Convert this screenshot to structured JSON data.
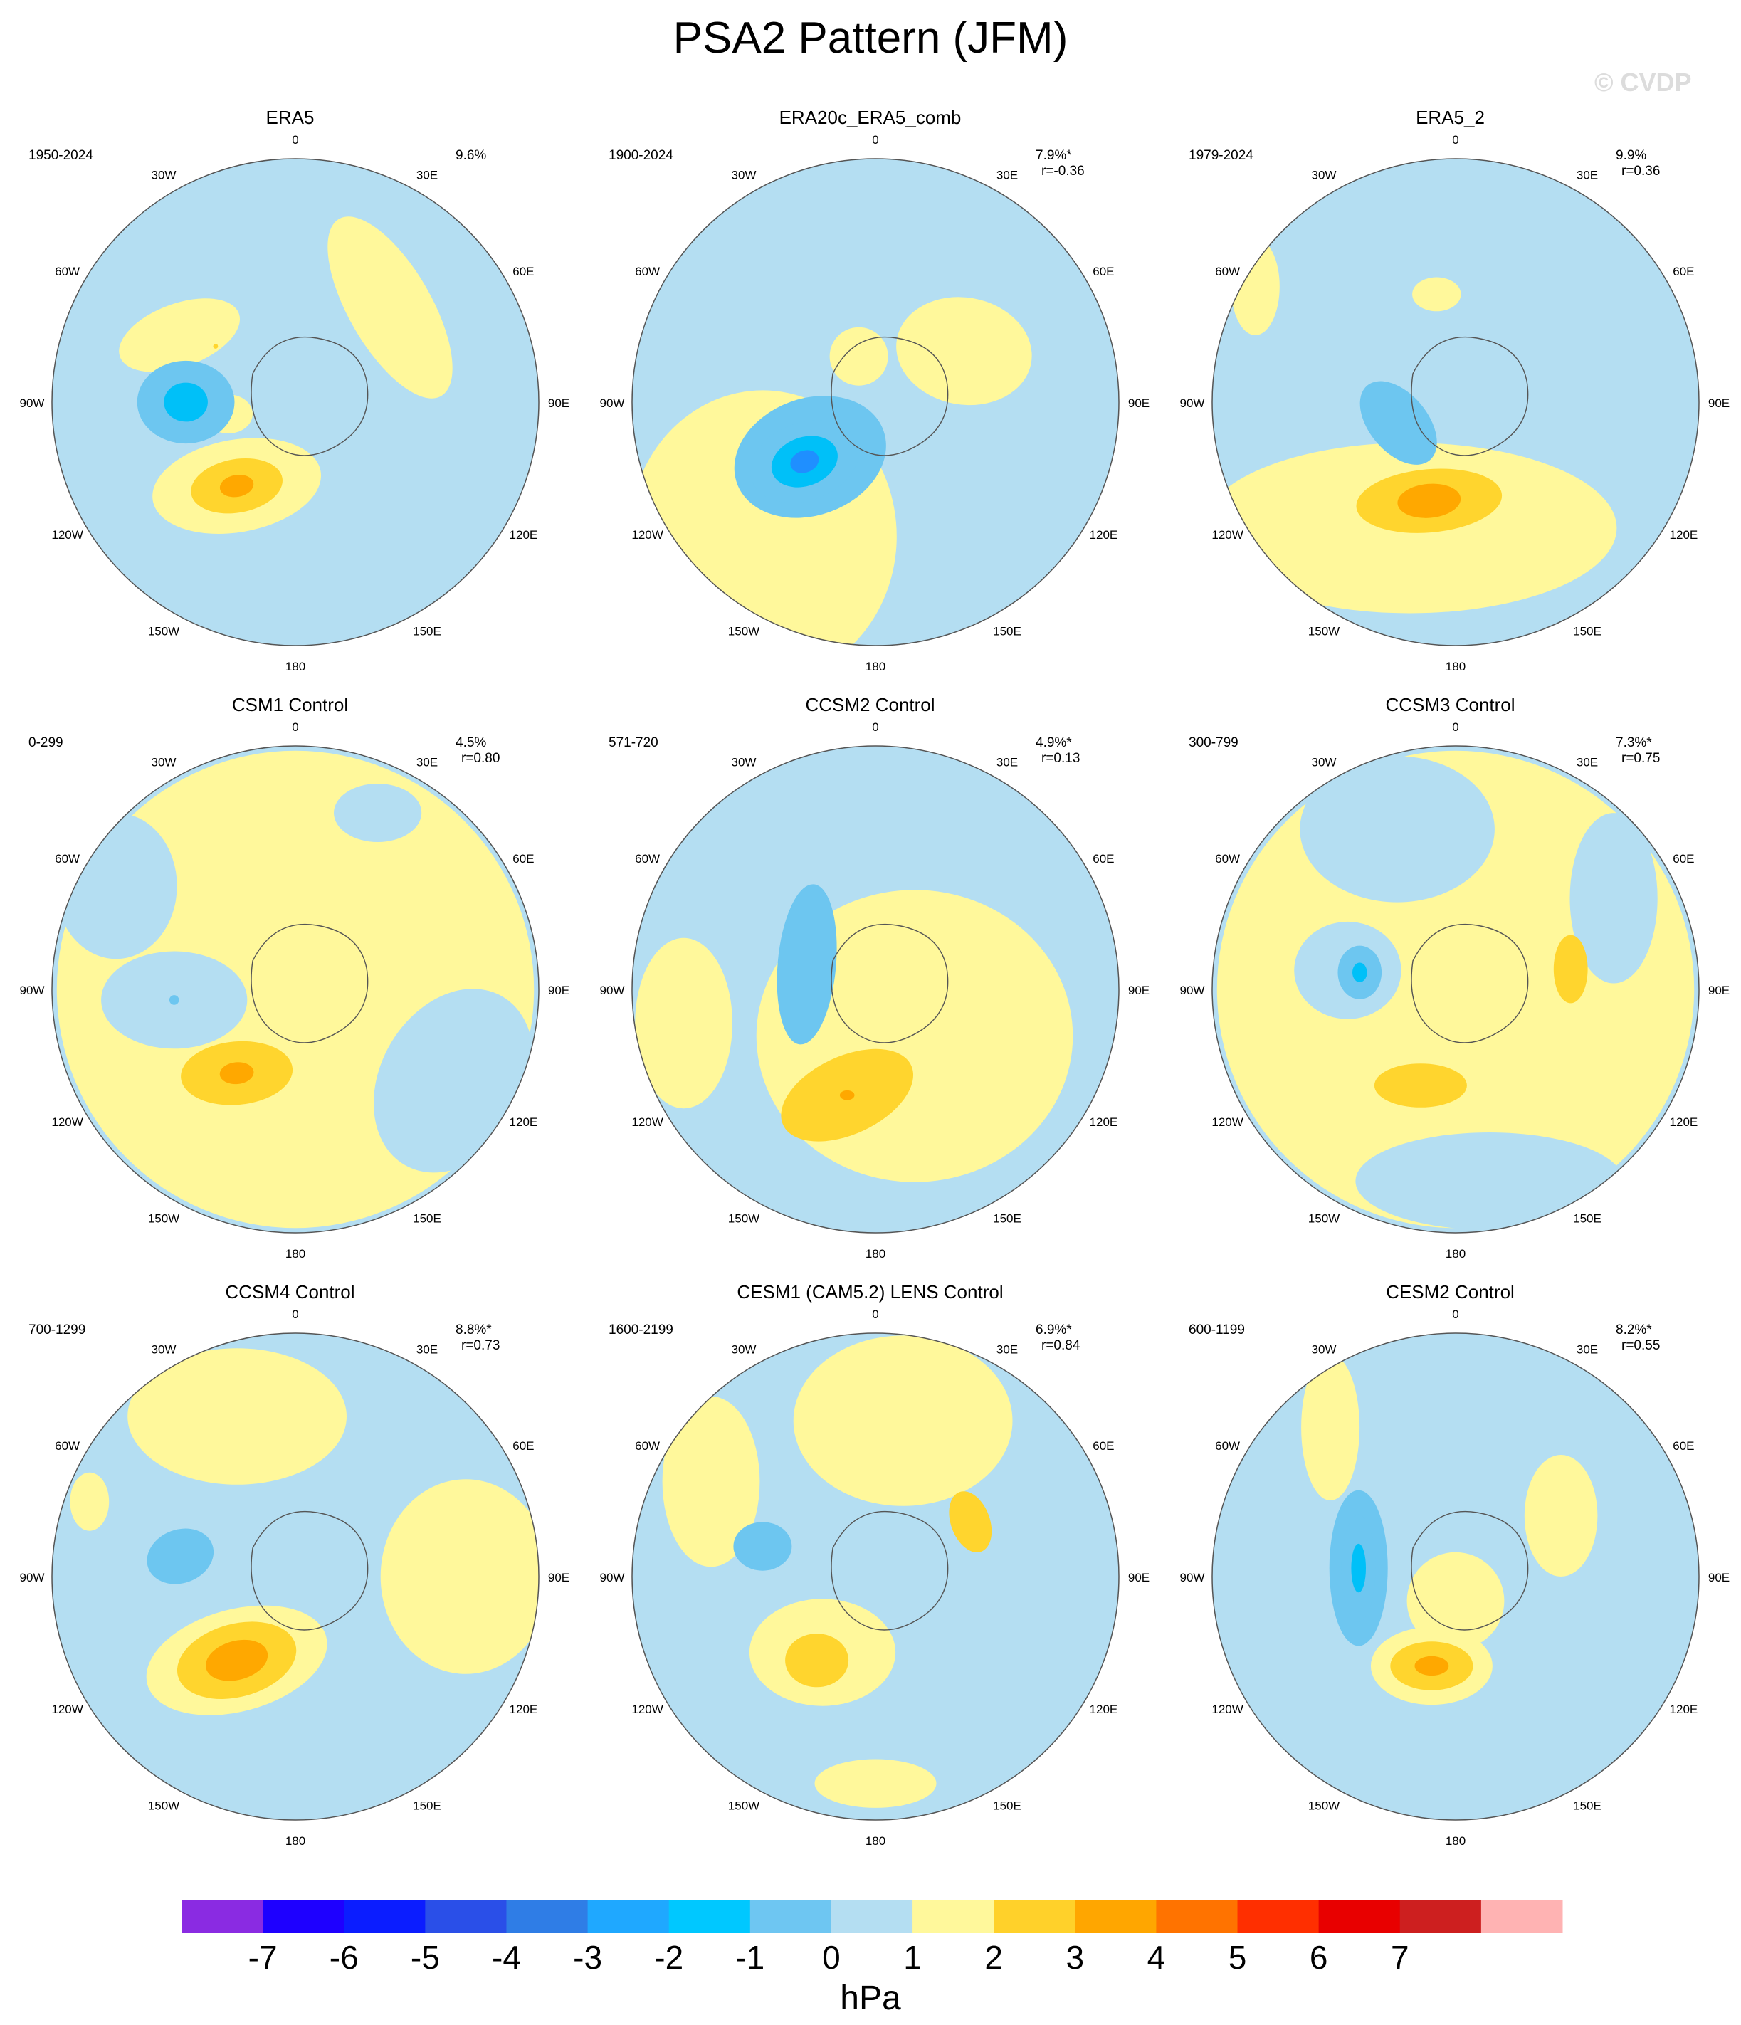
{
  "title": "PSA2 Pattern (JFM)",
  "watermark": "© CVDP",
  "lon_labels": [
    "0",
    "30E",
    "60E",
    "90E",
    "120E",
    "150E",
    "180",
    "150W",
    "120W",
    "90W",
    "60W",
    "30W"
  ],
  "panels": [
    {
      "title": "ERA5",
      "period": "1950-2024",
      "variance": "9.6%",
      "correlation": "",
      "anomalies": [
        {
          "level": 1,
          "lon": 300,
          "colat": 0.55,
          "rx": 0.26,
          "ry": 0.13,
          "rot": -20
        },
        {
          "level": 2,
          "lon": 305,
          "colat": 0.4,
          "rx": 0.01,
          "ry": 0.01,
          "rot": 0
        },
        {
          "level": 1,
          "lon": 45,
          "colat": 0.55,
          "rx": 0.42,
          "ry": 0.17,
          "rot": 60
        },
        {
          "level": 1,
          "lon": 260,
          "colat": 0.28,
          "rx": 0.1,
          "ry": 0.08,
          "rot": 0
        },
        {
          "level": -2,
          "lon": 270,
          "colat": 0.45,
          "rx": 0.2,
          "ry": 0.17,
          "rot": 0
        },
        {
          "level": -3,
          "lon": 270,
          "colat": 0.45,
          "rx": 0.09,
          "ry": 0.08,
          "rot": 0
        },
        {
          "level": 1,
          "lon": 215,
          "colat": 0.42,
          "rx": 0.35,
          "ry": 0.19,
          "rot": -10
        },
        {
          "level": 2,
          "lon": 215,
          "colat": 0.42,
          "rx": 0.19,
          "ry": 0.11,
          "rot": -10
        },
        {
          "level": 3,
          "lon": 215,
          "colat": 0.42,
          "rx": 0.07,
          "ry": 0.045,
          "rot": -10
        }
      ]
    },
    {
      "title": "ERA20c_ERA5_comb",
      "period": "1900-2024",
      "variance": "7.9%*",
      "correlation": "r=-0.36",
      "anomalies": [
        {
          "level": 1,
          "lon": 220,
          "colat": 0.72,
          "rx": 0.55,
          "ry": 0.6,
          "rot": 0
        },
        {
          "level": 1,
          "lon": 60,
          "colat": 0.42,
          "rx": 0.28,
          "ry": 0.22,
          "rot": 10
        },
        {
          "level": 1,
          "lon": 340,
          "colat": 0.2,
          "rx": 0.12,
          "ry": 0.12,
          "rot": 0
        },
        {
          "level": 0,
          "lon": 180,
          "colat": 0.15,
          "rx": 0.1,
          "ry": 0.1,
          "rot": 0
        },
        {
          "level": -1,
          "lon": 230,
          "colat": 0.35,
          "rx": 0.32,
          "ry": 0.24,
          "rot": -20
        },
        {
          "level": -2,
          "lon": 230,
          "colat": 0.38,
          "rx": 0.23,
          "ry": 0.16,
          "rot": -20
        },
        {
          "level": -3,
          "lon": 230,
          "colat": 0.38,
          "rx": 0.14,
          "ry": 0.1,
          "rot": -20
        },
        {
          "level": -4,
          "lon": 230,
          "colat": 0.38,
          "rx": 0.06,
          "ry": 0.045,
          "rot": -20
        }
      ]
    },
    {
      "title": "ERA5_2",
      "period": "1979-2024",
      "variance": "9.9%",
      "correlation": "r=0.36",
      "anomalies": [
        {
          "level": 1,
          "lon": 200,
          "colat": 0.55,
          "rx": 0.85,
          "ry": 0.35,
          "rot": 0
        },
        {
          "level": 1,
          "lon": 300,
          "colat": 0.95,
          "rx": 0.1,
          "ry": 0.2,
          "rot": 0
        },
        {
          "level": 1,
          "lon": 350,
          "colat": 0.45,
          "rx": 0.1,
          "ry": 0.07,
          "rot": 0
        },
        {
          "level": -1,
          "lon": 250,
          "colat": 0.25,
          "rx": 0.12,
          "ry": 0.2,
          "rot": -40
        },
        {
          "level": 2,
          "lon": 195,
          "colat": 0.42,
          "rx": 0.3,
          "ry": 0.13,
          "rot": -5
        },
        {
          "level": 3,
          "lon": 195,
          "colat": 0.42,
          "rx": 0.13,
          "ry": 0.07,
          "rot": -5
        }
      ]
    },
    {
      "title": "CSM1 Control",
      "period": "0-299",
      "variance": "4.5%",
      "correlation": "r=0.80",
      "anomalies": [
        {
          "level": 1,
          "lon": 0,
          "colat": 0.0,
          "rx": 0.98,
          "ry": 0.98,
          "rot": 0
        },
        {
          "level": 0,
          "lon": 265,
          "colat": 0.5,
          "rx": 0.3,
          "ry": 0.2,
          "rot": 0
        },
        {
          "level": -1,
          "lon": 265,
          "colat": 0.5,
          "rx": 0.02,
          "ry": 0.02,
          "rot": 0
        },
        {
          "level": 0,
          "lon": 120,
          "colat": 0.75,
          "rx": 0.3,
          "ry": 0.4,
          "rot": 30
        },
        {
          "level": 0,
          "lon": 300,
          "colat": 0.85,
          "rx": 0.25,
          "ry": 0.3,
          "rot": 0
        },
        {
          "level": 0,
          "lon": 25,
          "colat": 0.8,
          "rx": 0.18,
          "ry": 0.12,
          "rot": 0
        },
        {
          "level": 2,
          "lon": 215,
          "colat": 0.42,
          "rx": 0.23,
          "ry": 0.13,
          "rot": -5
        },
        {
          "level": 3,
          "lon": 215,
          "colat": 0.42,
          "rx": 0.07,
          "ry": 0.045,
          "rot": -5
        }
      ]
    },
    {
      "title": "CCSM2 Control",
      "period": "571-720",
      "variance": "4.9%*",
      "correlation": "r=0.13",
      "anomalies": [
        {
          "level": 1,
          "lon": 140,
          "colat": 0.25,
          "rx": 0.65,
          "ry": 0.6,
          "rot": 0
        },
        {
          "level": 1,
          "lon": 260,
          "colat": 0.8,
          "rx": 0.2,
          "ry": 0.35,
          "rot": 0
        },
        {
          "level": -1,
          "lon": 290,
          "colat": 0.3,
          "rx": 0.12,
          "ry": 0.33,
          "rot": 5
        },
        {
          "level": 2,
          "lon": 195,
          "colat": 0.45,
          "rx": 0.29,
          "ry": 0.16,
          "rot": -25
        },
        {
          "level": 3,
          "lon": 195,
          "colat": 0.45,
          "rx": 0.03,
          "ry": 0.02,
          "rot": 0
        }
      ]
    },
    {
      "title": "CCSM3 Control",
      "period": "300-799",
      "variance": "7.3%*",
      "correlation": "r=0.75",
      "anomalies": [
        {
          "level": 1,
          "lon": 0,
          "colat": 0.0,
          "rx": 0.98,
          "ry": 0.98,
          "rot": 0
        },
        {
          "level": 0,
          "lon": 340,
          "colat": 0.7,
          "rx": 0.4,
          "ry": 0.3,
          "rot": 0
        },
        {
          "level": 0,
          "lon": 280,
          "colat": 0.45,
          "rx": 0.22,
          "ry": 0.2,
          "rot": 0
        },
        {
          "level": 0,
          "lon": 170,
          "colat": 0.8,
          "rx": 0.55,
          "ry": 0.2,
          "rot": 0
        },
        {
          "level": 0,
          "lon": 60,
          "colat": 0.75,
          "rx": 0.18,
          "ry": 0.35,
          "rot": 0
        },
        {
          "level": -2,
          "lon": 280,
          "colat": 0.4,
          "rx": 0.09,
          "ry": 0.11,
          "rot": 0
        },
        {
          "level": -3,
          "lon": 280,
          "colat": 0.4,
          "rx": 0.03,
          "ry": 0.04,
          "rot": 0
        },
        {
          "level": 2,
          "lon": 200,
          "colat": 0.42,
          "rx": 0.19,
          "ry": 0.09,
          "rot": 0
        },
        {
          "level": 2,
          "lon": 80,
          "colat": 0.48,
          "rx": 0.07,
          "ry": 0.14,
          "rot": 0
        }
      ]
    },
    {
      "title": "CCSM4 Control",
      "period": "700-1299",
      "variance": "8.8%*",
      "correlation": "r=0.73",
      "anomalies": [
        {
          "level": 1,
          "lon": 340,
          "colat": 0.7,
          "rx": 0.45,
          "ry": 0.28,
          "rot": 0
        },
        {
          "level": 1,
          "lon": 90,
          "colat": 0.7,
          "rx": 0.35,
          "ry": 0.4,
          "rot": 0
        },
        {
          "level": 1,
          "lon": 290,
          "colat": 0.9,
          "rx": 0.08,
          "ry": 0.12,
          "rot": 0
        },
        {
          "level": -2,
          "lon": 280,
          "colat": 0.48,
          "rx": 0.14,
          "ry": 0.11,
          "rot": -20
        },
        {
          "level": 1,
          "lon": 215,
          "colat": 0.42,
          "rx": 0.38,
          "ry": 0.21,
          "rot": -15
        },
        {
          "level": 2,
          "lon": 215,
          "colat": 0.42,
          "rx": 0.25,
          "ry": 0.15,
          "rot": -15
        },
        {
          "level": 3,
          "lon": 215,
          "colat": 0.42,
          "rx": 0.13,
          "ry": 0.08,
          "rot": -15
        }
      ]
    },
    {
      "title": "CESM1 (CAM5.2) LENS Control",
      "period": "1600-2199",
      "variance": "6.9%*",
      "correlation": "r=0.84",
      "anomalies": [
        {
          "level": 1,
          "lon": 10,
          "colat": 0.65,
          "rx": 0.45,
          "ry": 0.35,
          "rot": 0
        },
        {
          "level": 1,
          "lon": 300,
          "colat": 0.78,
          "rx": 0.2,
          "ry": 0.35,
          "rot": 0
        },
        {
          "level": 1,
          "lon": 215,
          "colat": 0.38,
          "rx": 0.3,
          "ry": 0.22,
          "rot": 0
        },
        {
          "level": 1,
          "lon": 180,
          "colat": 0.85,
          "rx": 0.25,
          "ry": 0.1,
          "rot": 0
        },
        {
          "level": 2,
          "lon": 60,
          "colat": 0.45,
          "rx": 0.08,
          "ry": 0.13,
          "rot": -20
        },
        {
          "level": 2,
          "lon": 215,
          "colat": 0.42,
          "rx": 0.13,
          "ry": 0.11,
          "rot": 0
        },
        {
          "level": -2,
          "lon": 285,
          "colat": 0.48,
          "rx": 0.12,
          "ry": 0.1,
          "rot": 0
        }
      ]
    },
    {
      "title": "CESM2 Control",
      "period": "600-1199",
      "variance": "8.2%*",
      "correlation": "r=0.55",
      "anomalies": [
        {
          "level": 1,
          "lon": 60,
          "colat": 0.5,
          "rx": 0.15,
          "ry": 0.25,
          "rot": 0
        },
        {
          "level": 1,
          "lon": 320,
          "colat": 0.8,
          "rx": 0.12,
          "ry": 0.3,
          "rot": 0
        },
        {
          "level": 1,
          "lon": 180,
          "colat": 0.1,
          "rx": 0.2,
          "ry": 0.2,
          "rot": 0
        },
        {
          "level": -1,
          "lon": 275,
          "colat": 0.4,
          "rx": 0.12,
          "ry": 0.32,
          "rot": 0
        },
        {
          "level": -2,
          "lon": 275,
          "colat": 0.4,
          "rx": 0.07,
          "ry": 0.22,
          "rot": 0
        },
        {
          "level": -3,
          "lon": 275,
          "colat": 0.4,
          "rx": 0.03,
          "ry": 0.1,
          "rot": 0
        },
        {
          "level": 1,
          "lon": 195,
          "colat": 0.38,
          "rx": 0.25,
          "ry": 0.16,
          "rot": 0
        },
        {
          "level": 2,
          "lon": 195,
          "colat": 0.38,
          "rx": 0.17,
          "ry": 0.1,
          "rot": 0
        },
        {
          "level": 3,
          "lon": 195,
          "colat": 0.38,
          "rx": 0.07,
          "ry": 0.04,
          "rot": 0
        }
      ]
    }
  ],
  "colorbar": {
    "unit": "hPa",
    "labels": [
      "-7",
      "-6",
      "-5",
      "-4",
      "-3",
      "-2",
      "-1",
      "0",
      "1",
      "2",
      "3",
      "4",
      "5",
      "6",
      "7"
    ],
    "colors": [
      "#8a2be2",
      "#1e00ff",
      "#0b1dff",
      "#2a4fe8",
      "#2f7de6",
      "#1fa8ff",
      "#00c8ff",
      "#6ec6f2",
      "#b4def2",
      "#fff89b",
      "#ffd12a",
      "#ffa600",
      "#ff7300",
      "#ff2f00",
      "#e80000",
      "#cd1f1f",
      "#ffb3b3"
    ]
  },
  "level_colors": {
    "-4": "#1f8fff",
    "-3": "#00c0f8",
    "-2": "#6dc6f0",
    "-1": "#6dc6f0",
    "0": "#b4def2",
    "1": "#fff89b",
    "2": "#ffd52e",
    "3": "#ffa800",
    "4": "#ff7400"
  },
  "ocean_base_color": "#b4def2"
}
